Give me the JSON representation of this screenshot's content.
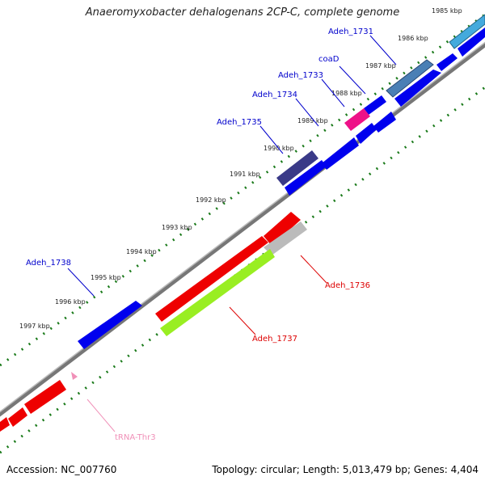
{
  "title": "Anaeromyxobacter dehalogenans 2CP-C, complete genome",
  "footer": {
    "accession": "Accession: NC_007760",
    "summary": "Topology: circular; Length: 5,013,479 bp; Genes: 4,404"
  },
  "ticks": [
    "1985 kbp",
    "1986 kbp",
    "1987 kbp",
    "1988 kbp",
    "1989 kbp",
    "1990 kbp",
    "1991 kbp",
    "1992 kbp",
    "1993 kbp",
    "1994 kbp",
    "1995 kbp",
    "1996 kbp",
    "1997 kbp"
  ],
  "genes": [
    {
      "name": "Adeh_1731",
      "color": "#0000cc"
    },
    {
      "name": "coaD",
      "color": "#0000cc"
    },
    {
      "name": "Adeh_1733",
      "color": "#0000cc"
    },
    {
      "name": "Adeh_1734",
      "color": "#0000cc"
    },
    {
      "name": "Adeh_1735",
      "color": "#0000cc"
    },
    {
      "name": "Adeh_1736",
      "color": "#e00000"
    },
    {
      "name": "Adeh_1737",
      "color": "#e00000"
    },
    {
      "name": "Adeh_1738",
      "color": "#0000cc"
    },
    {
      "name": "tRNA-Thr3",
      "color": "#f090b8"
    }
  ],
  "colors": {
    "forward": "#0000ee",
    "reverse": "#ee0000",
    "backbone": "#888888",
    "tick": "#1a7a1a"
  }
}
